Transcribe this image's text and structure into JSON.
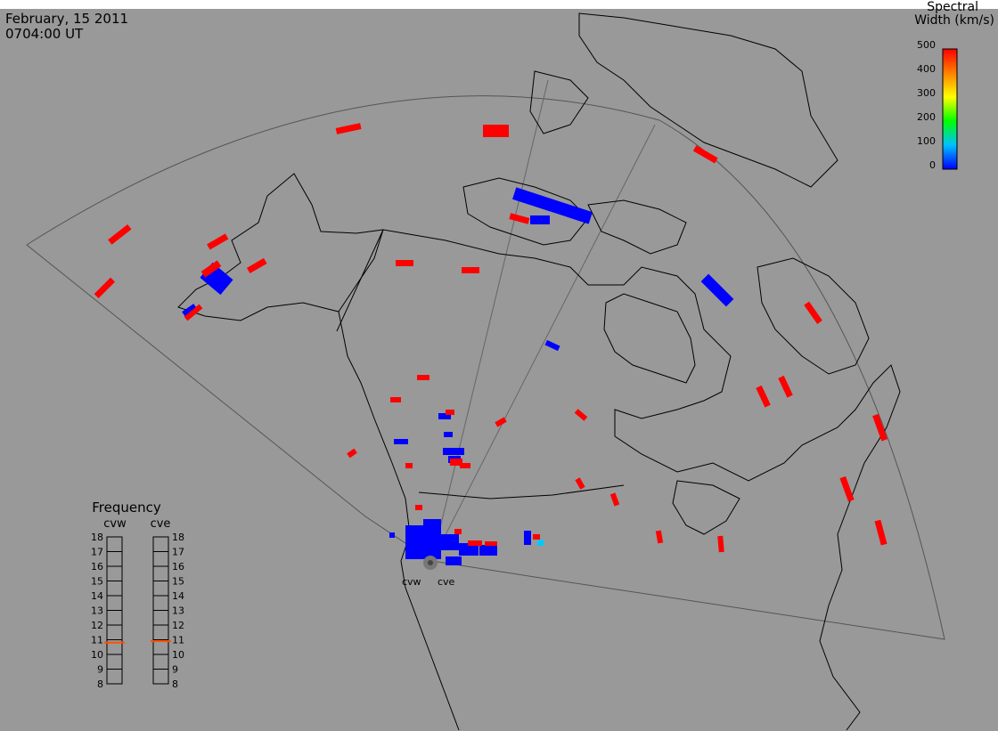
{
  "header": {
    "date": "February, 15 2011",
    "time": "0704:00 UT"
  },
  "colorbar": {
    "title_line1": "Spectral",
    "title_line2": "Width (km/s)",
    "ticks": [
      "500",
      "400",
      "300",
      "200",
      "100",
      "0"
    ],
    "stops": [
      "#0000ff",
      "#00c0ff",
      "#00ff00",
      "#ffff00",
      "#ff8000",
      "#ff0000"
    ]
  },
  "frequency": {
    "title": "Frequency",
    "scales": [
      {
        "name": "cvw",
        "value": 10.8
      },
      {
        "name": "cve",
        "value": 10.9
      }
    ],
    "ticks": [
      "18",
      "17",
      "16",
      "15",
      "14",
      "13",
      "12",
      "11",
      "10",
      "9",
      "8"
    ],
    "marker_color": "#ff5000"
  },
  "radars": {
    "labels": [
      "cvw",
      "cve"
    ]
  },
  "colors": {
    "background": "#999999",
    "low_width": "#0000ff",
    "high_width": "#ff0000",
    "mid_width": "#00c8ff"
  }
}
